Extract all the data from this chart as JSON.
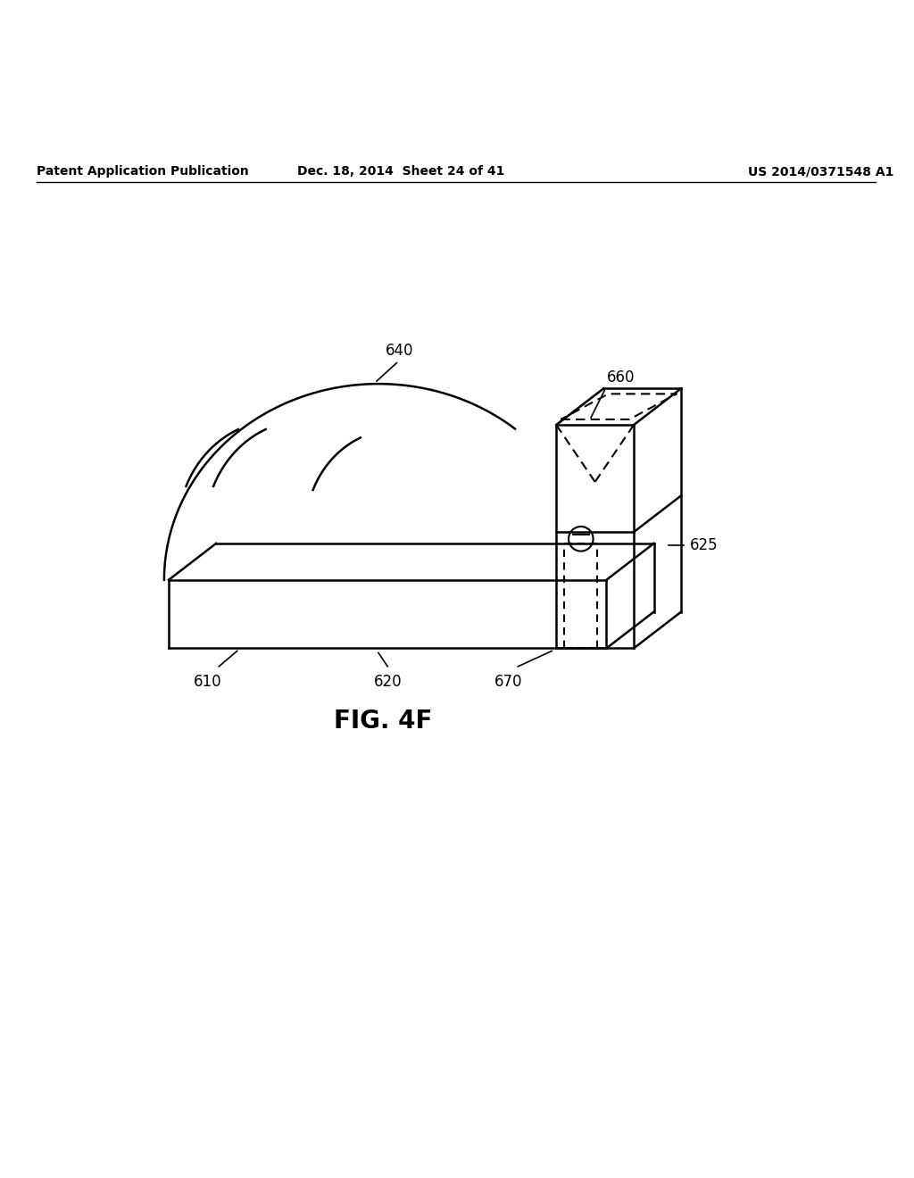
{
  "background_color": "#ffffff",
  "header_left": "Patent Application Publication",
  "header_center": "Dec. 18, 2014  Sheet 24 of 41",
  "header_right": "US 2014/0371548 A1",
  "fig_label": "FIG. 4F",
  "line_color": "#000000",
  "lw": 1.8,
  "dashed_lw": 1.5,
  "text_color": "#000000",
  "header_fontsize": 10,
  "label_fontsize": 12,
  "fig_label_fontsize": 20
}
